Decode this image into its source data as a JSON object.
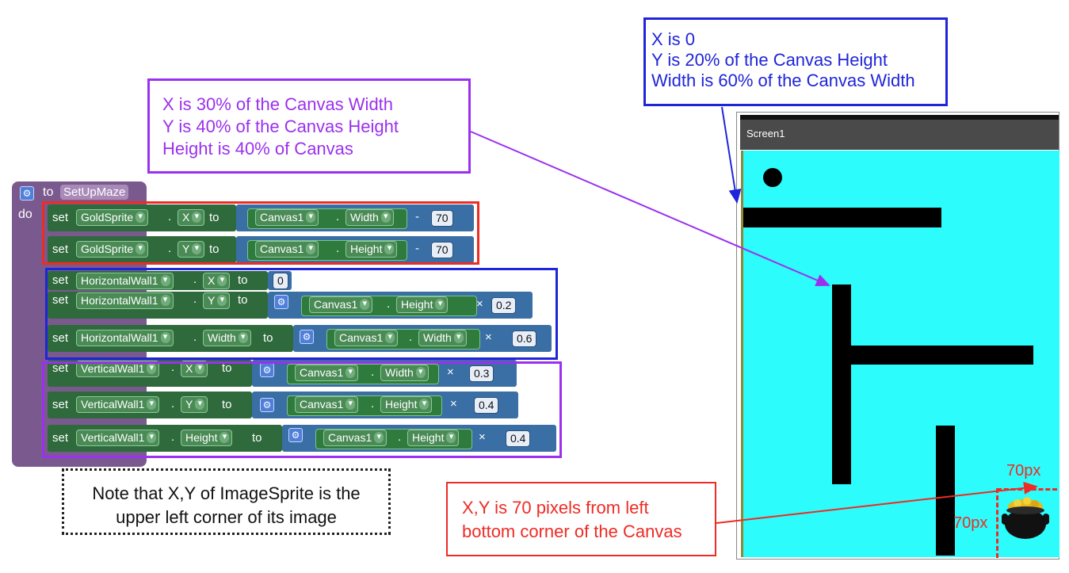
{
  "callouts": {
    "blue": [
      "X is 0",
      "Y is 20% of the Canvas Height",
      "Width is 60% of the Canvas Width"
    ],
    "purple": [
      "X is 30% of the Canvas Width",
      "Y is 40% of the Canvas Height",
      "Height is 40% of Canvas"
    ],
    "red": [
      "X,Y is 70 pixels from left",
      "bottom corner of the Canvas"
    ],
    "note": [
      "Note that X,Y of ImageSprite is the",
      "upper left corner of its image"
    ]
  },
  "procedure": {
    "keyword_to": "to",
    "name": "SetUpMaze",
    "keyword_do": "do",
    "rows": [
      {
        "set": "set",
        "component": "GoldSprite",
        "prop": "X",
        "to": "to",
        "getter_comp": "Canvas1",
        "getter_prop": "Width",
        "op": "-",
        "value": "70"
      },
      {
        "set": "set",
        "component": "GoldSprite",
        "prop": "Y",
        "to": "to",
        "getter_comp": "Canvas1",
        "getter_prop": "Height",
        "op": "-",
        "value": "70"
      },
      {
        "set": "set",
        "component": "HorizontalWall1",
        "prop": "X",
        "to": "to",
        "value": "0"
      },
      {
        "set": "set",
        "component": "HorizontalWall1",
        "prop": "Y",
        "to": "to",
        "getter_comp": "Canvas1",
        "getter_prop": "Height",
        "op": "×",
        "value": "0.2"
      },
      {
        "set": "set",
        "component": "HorizontalWall1",
        "prop": "Width",
        "to": "to",
        "getter_comp": "Canvas1",
        "getter_prop": "Width",
        "op": "×",
        "value": "0.6"
      },
      {
        "set": "set",
        "component": "VerticalWall1",
        "prop": "X",
        "to": "to",
        "getter_comp": "Canvas1",
        "getter_prop": "Width",
        "op": "×",
        "value": "0.3"
      },
      {
        "set": "set",
        "component": "VerticalWall1",
        "prop": "Y",
        "to": "to",
        "getter_comp": "Canvas1",
        "getter_prop": "Height",
        "op": "×",
        "value": "0.4"
      },
      {
        "set": "set",
        "component": "VerticalWall1",
        "prop": "Height",
        "to": "to",
        "getter_comp": "Canvas1",
        "getter_prop": "Height",
        "op": "×",
        "value": "0.4"
      }
    ]
  },
  "phone": {
    "title": "Screen1",
    "label_70_top": "70px",
    "label_70_left": "70px"
  },
  "colors": {
    "blue": "#1f25d8",
    "purple": "#9b30ee",
    "red": "#ee2b24",
    "canvas": "#2cfcfb"
  },
  "icons": {
    "gear": "gear-icon",
    "pot": "pot-of-gold-icon",
    "ball": "ball-sprite"
  }
}
